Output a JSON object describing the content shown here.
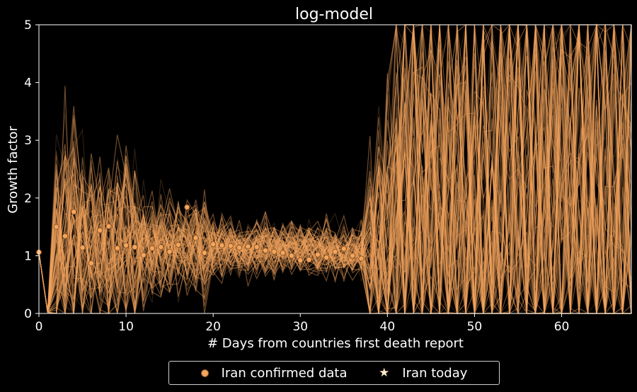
{
  "chart_data": {
    "type": "line",
    "title": "log-model",
    "xlabel": "# Days from countries first death report",
    "ylabel": "Growth factor",
    "xlim": [
      0,
      68
    ],
    "ylim": [
      0,
      5
    ],
    "xticks": [
      "0",
      "10",
      "20",
      "30",
      "40",
      "50",
      "60"
    ],
    "yticks": [
      "0",
      "1",
      "2",
      "3",
      "4",
      "5"
    ],
    "grid": false,
    "legend_position": "below",
    "colors": {
      "background": "#000000",
      "simulation": "#f4a55e",
      "points": "#f4a55e",
      "star": "#ffe9c8"
    },
    "series": [
      {
        "name": "Iran confirmed data",
        "x": [
          0,
          2,
          3,
          4,
          5,
          6,
          7,
          8,
          9,
          10,
          11,
          12,
          13,
          14,
          15,
          16,
          17,
          18,
          19,
          20,
          21,
          22,
          23,
          24,
          25,
          26,
          27,
          28,
          29,
          30,
          31,
          32,
          33,
          34,
          35,
          36,
          37
        ],
        "values": [
          1.06,
          1.5,
          1.34,
          1.76,
          1.14,
          0.87,
          1.44,
          1.51,
          1.13,
          1.18,
          1.15,
          1.01,
          1.13,
          1.15,
          1.07,
          1.19,
          1.84,
          1.31,
          1.05,
          1.2,
          1.18,
          1.17,
          1.14,
          1.16,
          1.15,
          1.09,
          1.07,
          1.05,
          1.0,
          0.92,
          0.93,
          1.02,
          0.97,
          1.07,
          1.12,
          1.0,
          0.95
        ]
      },
      {
        "name": "Iran today",
        "x": [],
        "values": []
      }
    ]
  },
  "legend": {
    "item1": "Iran confirmed data",
    "item2": "Iran today"
  }
}
